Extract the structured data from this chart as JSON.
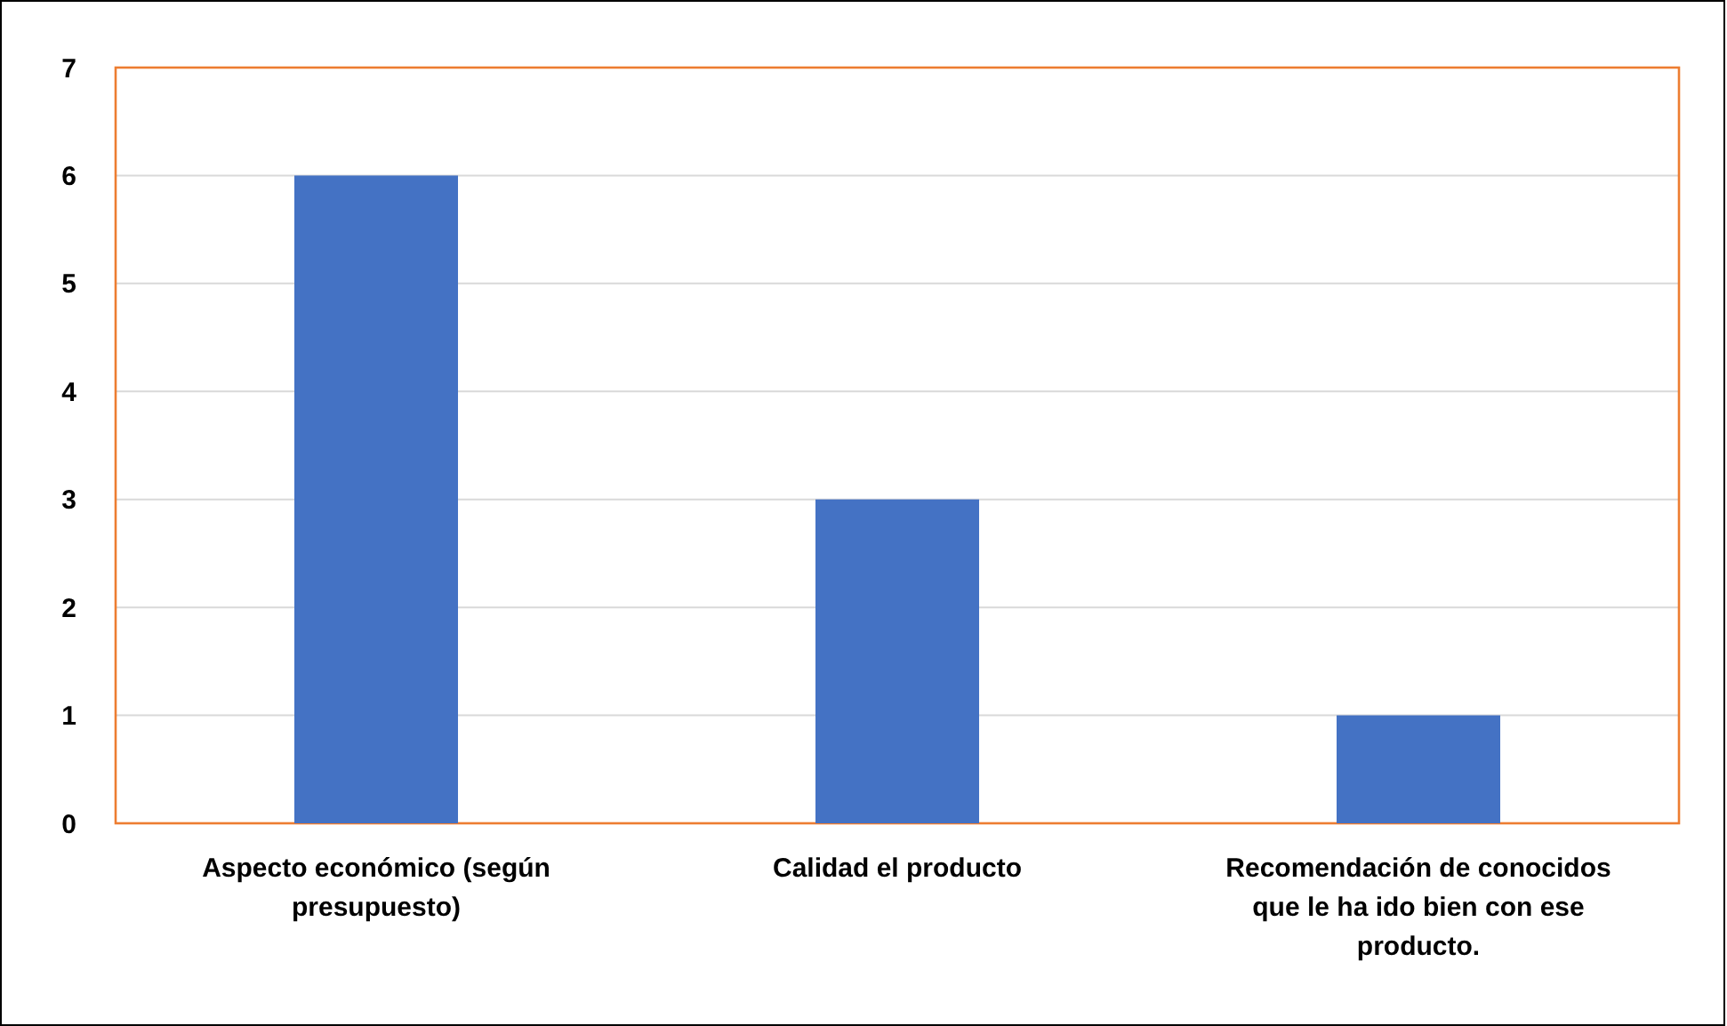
{
  "chart_data": {
    "type": "bar",
    "categories": [
      "Aspecto económico (según presupuesto)",
      "Calidad el producto",
      "Recomendación de conocidos que le ha ido bien con ese producto."
    ],
    "values": [
      6,
      3,
      1
    ],
    "color": "#4472c4",
    "ylim": [
      0,
      7
    ],
    "yticks": [
      0,
      1,
      2,
      3,
      4,
      5,
      6,
      7
    ],
    "grid": "y"
  }
}
